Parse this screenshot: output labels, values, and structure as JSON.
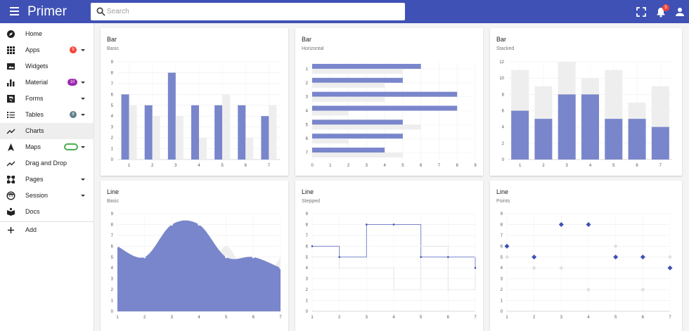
{
  "app": {
    "brand": "Primer"
  },
  "search": {
    "placeholder": "Search"
  },
  "header": {
    "notification_count": "5"
  },
  "sidebar": {
    "items": [
      {
        "name": "home",
        "label": "Home",
        "icon": "compass-icon"
      },
      {
        "name": "apps",
        "label": "Apps",
        "icon": "grid-icon",
        "badge": "9",
        "badge_color": "#f44336",
        "caret": true
      },
      {
        "name": "widgets",
        "label": "Widgets",
        "icon": "image-icon"
      },
      {
        "name": "material",
        "label": "Material",
        "icon": "bar-chart-icon",
        "badge": "10",
        "badge_color": "#9c27b0",
        "caret": true
      },
      {
        "name": "forms",
        "label": "Forms",
        "icon": "form-icon",
        "caret": true
      },
      {
        "name": "tables",
        "label": "Tables",
        "icon": "list-icon",
        "badge": "8",
        "badge_color": "#607d8b",
        "caret": true
      },
      {
        "name": "charts",
        "label": "Charts",
        "icon": "trending-icon",
        "active": true
      },
      {
        "name": "maps",
        "label": "Maps",
        "icon": "navigation-icon",
        "badge": "",
        "badge_color": "#4caf50",
        "caret": true
      },
      {
        "name": "drag-and-drop",
        "label": "Drag and Drop",
        "icon": "trending-icon"
      },
      {
        "name": "pages",
        "label": "Pages",
        "icon": "crop-icon",
        "caret": true
      },
      {
        "name": "session",
        "label": "Session",
        "icon": "face-icon",
        "caret": true
      },
      {
        "name": "docs",
        "label": "Docs",
        "icon": "book-icon"
      }
    ],
    "add_label": "Add"
  },
  "colors": {
    "primary": "#3f51b5",
    "series_main": "#7986cb",
    "series_secondary": "#eeeeee",
    "line_dark": "#3f51b5"
  },
  "cards": [
    {
      "title": "Bar",
      "subtitle": "Basic"
    },
    {
      "title": "Bar",
      "subtitle": "Horizontal"
    },
    {
      "title": "Bar",
      "subtitle": "Stacked"
    },
    {
      "title": "Line",
      "subtitle": "Basic"
    },
    {
      "title": "Line",
      "subtitle": "Stepped"
    },
    {
      "title": "Line",
      "subtitle": "Points"
    }
  ],
  "chart_data": [
    {
      "type": "bar",
      "title": "Bar",
      "subtitle": "Basic",
      "categories": [
        "1",
        "2",
        "3",
        "4",
        "5",
        "6",
        "7"
      ],
      "series": [
        {
          "values": [
            6,
            5,
            8,
            5,
            5,
            5,
            4
          ]
        },
        {
          "values": [
            5,
            4,
            4,
            2,
            6,
            2,
            5
          ]
        }
      ],
      "ylim": [
        0,
        9
      ],
      "yticks": [
        "0",
        "1",
        "2",
        "3",
        "4",
        "5",
        "6",
        "7",
        "8",
        "9"
      ],
      "grid": true
    },
    {
      "type": "bar",
      "orientation": "horizontal",
      "title": "Bar",
      "subtitle": "Horizontal",
      "categories": [
        "1",
        "2",
        "3",
        "4",
        "5",
        "6",
        "7"
      ],
      "series": [
        {
          "values": [
            6,
            5,
            8,
            8,
            5,
            5,
            4
          ]
        },
        {
          "values": [
            5,
            4,
            4,
            2,
            6,
            2,
            5
          ]
        }
      ],
      "xlim": [
        0,
        9
      ],
      "xticks": [
        "0",
        "1",
        "2",
        "3",
        "4",
        "5",
        "6",
        "7",
        "8",
        "9"
      ],
      "grid": true
    },
    {
      "type": "bar",
      "stacked": true,
      "title": "Bar",
      "subtitle": "Stacked",
      "categories": [
        "1",
        "2",
        "3",
        "4",
        "5",
        "6",
        "7"
      ],
      "series": [
        {
          "values": [
            6,
            5,
            8,
            8,
            5,
            5,
            4
          ]
        },
        {
          "values": [
            5,
            4,
            4,
            2,
            6,
            2,
            5
          ]
        }
      ],
      "ylim": [
        0,
        12
      ],
      "yticks": [
        "0",
        "2",
        "4",
        "6",
        "8",
        "10",
        "12"
      ],
      "grid": true
    },
    {
      "type": "line",
      "fill": true,
      "curve": "smooth",
      "title": "Line",
      "subtitle": "Basic",
      "x": [
        "1",
        "2",
        "3",
        "4",
        "5",
        "6",
        "7"
      ],
      "series": [
        {
          "values": [
            6,
            5,
            8,
            8,
            5,
            5,
            4
          ]
        },
        {
          "values": [
            5,
            4,
            4,
            2,
            6,
            2,
            5
          ]
        }
      ],
      "ylim": [
        0,
        9
      ],
      "yticks": [
        "0",
        "1",
        "2",
        "3",
        "4",
        "5",
        "6",
        "7",
        "8",
        "9"
      ],
      "grid": true
    },
    {
      "type": "line",
      "curve": "stepped",
      "title": "Line",
      "subtitle": "Stepped",
      "x": [
        "1",
        "2",
        "3",
        "4",
        "5",
        "6",
        "7"
      ],
      "series": [
        {
          "values": [
            6,
            5,
            8,
            8,
            5,
            5,
            4
          ]
        },
        {
          "values": [
            5,
            4,
            4,
            2,
            6,
            2,
            5
          ]
        }
      ],
      "ylim": [
        0,
        9
      ],
      "yticks": [
        "0",
        "1",
        "2",
        "3",
        "4",
        "5",
        "6",
        "7",
        "8",
        "9"
      ],
      "grid": true
    },
    {
      "type": "scatter",
      "marker": "diamond",
      "title": "Line",
      "subtitle": "Points",
      "x": [
        "1",
        "2",
        "3",
        "4",
        "5",
        "6",
        "7"
      ],
      "series": [
        {
          "values": [
            6,
            5,
            8,
            8,
            5,
            5,
            4
          ]
        },
        {
          "values": [
            5,
            4,
            4,
            2,
            6,
            2,
            5
          ]
        }
      ],
      "ylim": [
        0,
        9
      ],
      "yticks": [
        "0",
        "1",
        "2",
        "3",
        "4",
        "5",
        "6",
        "7",
        "8",
        "9"
      ],
      "grid": true
    }
  ]
}
